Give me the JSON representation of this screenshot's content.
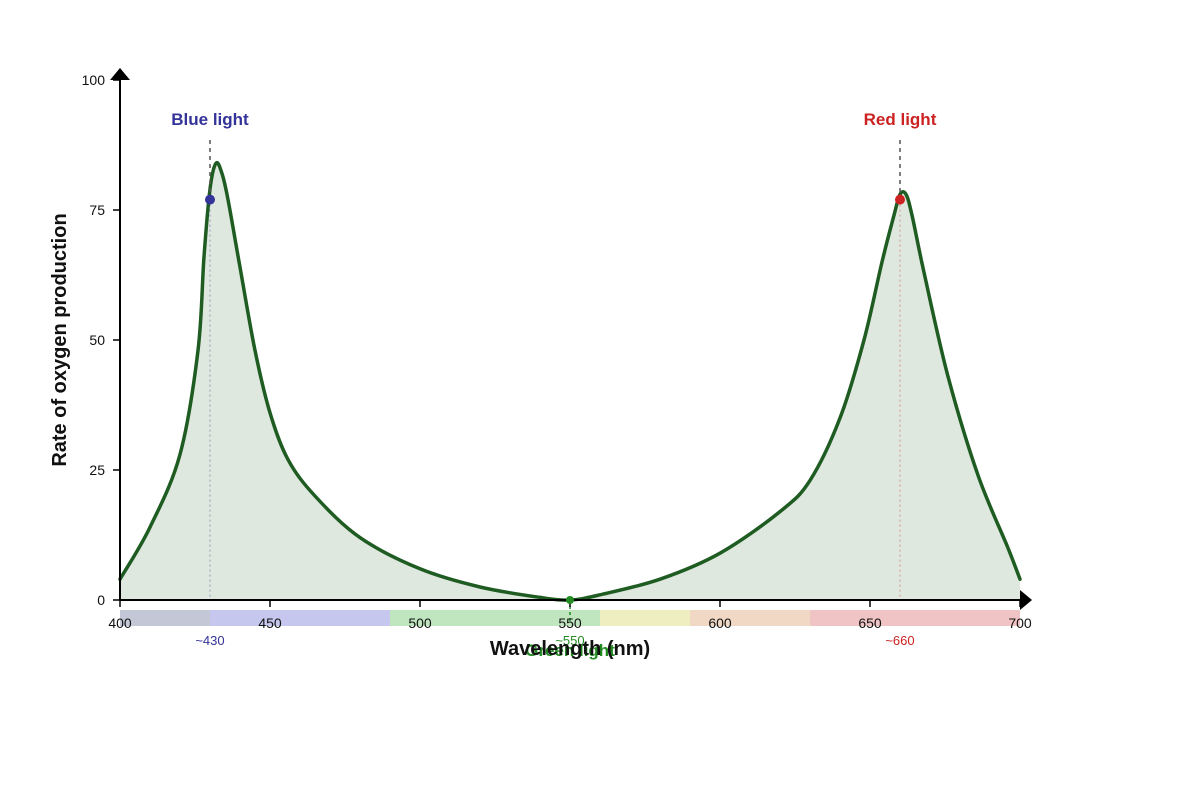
{
  "chart_data": {
    "type": "area",
    "title": "",
    "xlabel": "Wavelength (nm)",
    "ylabel": "Rate of oxygen production",
    "xlim": [
      400,
      700
    ],
    "ylim": [
      0,
      100
    ],
    "x_ticks": [
      400,
      450,
      500,
      550,
      600,
      650,
      700
    ],
    "y_ticks": [
      0,
      25,
      50,
      75,
      100
    ],
    "grid": false,
    "series": [
      {
        "x": [
          400,
          410,
          420,
          426,
          428,
          430,
          432,
          434,
          436,
          440,
          445,
          450,
          456,
          465,
          480,
          500,
          520,
          540,
          550,
          560,
          580,
          600,
          620,
          630,
          640,
          648,
          654,
          658,
          660,
          662,
          664,
          668,
          676,
          686,
          696,
          700
        ],
        "y": [
          4,
          14,
          28,
          48,
          66,
          79,
          84,
          82,
          77,
          64,
          48,
          36,
          27,
          20,
          12,
          6,
          2.5,
          0.5,
          0,
          1,
          4,
          9,
          17,
          23,
          35,
          50,
          65,
          74,
          78,
          78,
          74,
          63,
          43,
          24,
          10,
          4
        ]
      }
    ],
    "markers": [
      {
        "x": 430,
        "y": 77,
        "color": "#333399"
      },
      {
        "x": 550,
        "y": 0,
        "color": "#228B22"
      },
      {
        "x": 660,
        "y": 77,
        "color": "#cc2222"
      }
    ],
    "annotations": [
      {
        "label": "Blue light",
        "sub": "~430",
        "x": 430,
        "color": "#333399"
      },
      {
        "label": "Green light",
        "sub": "~550",
        "x": 550,
        "color": "#228B22"
      },
      {
        "label": "Red light",
        "sub": "~660",
        "x": 660,
        "color": "#cc2222"
      }
    ],
    "spectrum_bands": [
      {
        "from": 400,
        "to": 430,
        "color": "#c4c8d6"
      },
      {
        "from": 430,
        "to": 490,
        "color": "#c6c7ee"
      },
      {
        "from": 490,
        "to": 560,
        "color": "#c0e6c0"
      },
      {
        "from": 560,
        "to": 590,
        "color": "#eeeec0"
      },
      {
        "from": 590,
        "to": 630,
        "color": "#f0d8c4"
      },
      {
        "from": 630,
        "to": 700,
        "color": "#f0c4c4"
      }
    ],
    "colors": {
      "line": "#1e5c22",
      "fill": "#dfe8df",
      "axis": "#000000"
    }
  }
}
